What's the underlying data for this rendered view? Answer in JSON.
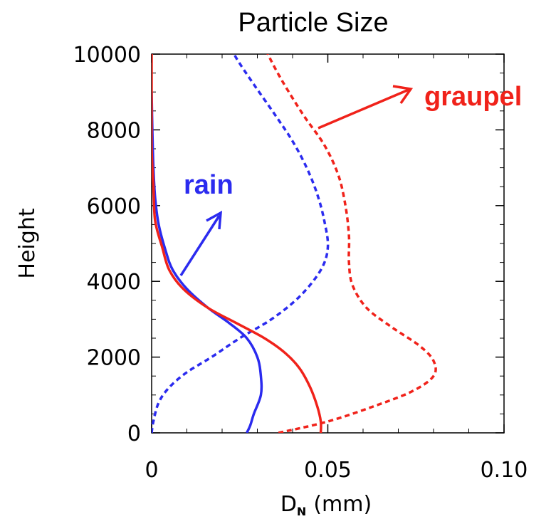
{
  "chart_data": {
    "type": "line",
    "title": "Particle Size",
    "xlabel": "D",
    "xlabel_sub": "N",
    "xlabel_unit": "(mm)",
    "ylabel": "Height",
    "xlim": [
      0,
      0.1
    ],
    "ylim": [
      0,
      10000
    ],
    "xticks": [
      "0",
      "0.05",
      "0.10"
    ],
    "xtick_values": [
      0,
      0.05,
      0.1
    ],
    "yticks": [
      "0",
      "2000",
      "4000",
      "6000",
      "8000",
      "10000"
    ],
    "ytick_values": [
      0,
      2000,
      4000,
      6000,
      8000,
      10000
    ],
    "colors": {
      "rain": "#2b2bef",
      "graupel": "#f0221a"
    },
    "series": [
      {
        "name": "rain",
        "color": "#2b2bef",
        "style": "solid",
        "points": [
          [
            0.027,
            0
          ],
          [
            0.028,
            200
          ],
          [
            0.029,
            500
          ],
          [
            0.031,
            1000
          ],
          [
            0.031,
            1500
          ],
          [
            0.03,
            2000
          ],
          [
            0.027,
            2500
          ],
          [
            0.022,
            2900
          ],
          [
            0.016,
            3300
          ],
          [
            0.01,
            3800
          ],
          [
            0.006,
            4300
          ],
          [
            0.004,
            4800
          ],
          [
            0.002,
            5500
          ],
          [
            0.001,
            6200
          ],
          [
            0.0005,
            7000
          ],
          [
            0.0002,
            8000
          ],
          [
            0,
            9000
          ]
        ]
      },
      {
        "name": "rain",
        "color": "#2b2bef",
        "style": "dashed",
        "points": [
          [
            0,
            0
          ],
          [
            0.0005,
            300
          ],
          [
            0.002,
            800
          ],
          [
            0.005,
            1200
          ],
          [
            0.01,
            1600
          ],
          [
            0.017,
            2000
          ],
          [
            0.025,
            2500
          ],
          [
            0.034,
            3000
          ],
          [
            0.042,
            3600
          ],
          [
            0.048,
            4300
          ],
          [
            0.05,
            4900
          ],
          [
            0.049,
            5600
          ],
          [
            0.047,
            6300
          ],
          [
            0.044,
            7000
          ],
          [
            0.04,
            7700
          ],
          [
            0.035,
            8400
          ],
          [
            0.029,
            9200
          ],
          [
            0.024,
            9900
          ],
          [
            0.022,
            10300
          ]
        ]
      },
      {
        "name": "graupel",
        "color": "#f0221a",
        "style": "solid",
        "points": [
          [
            0.048,
            0
          ],
          [
            0.048,
            300
          ],
          [
            0.047,
            700
          ],
          [
            0.045,
            1200
          ],
          [
            0.042,
            1700
          ],
          [
            0.038,
            2100
          ],
          [
            0.032,
            2500
          ],
          [
            0.024,
            2900
          ],
          [
            0.016,
            3300
          ],
          [
            0.009,
            3800
          ],
          [
            0.005,
            4300
          ],
          [
            0.003,
            4900
          ],
          [
            0.001,
            5600
          ],
          [
            0.0005,
            6500
          ],
          [
            0,
            7500
          ],
          [
            0,
            8500
          ],
          [
            0,
            10300
          ]
        ]
      },
      {
        "name": "graupel",
        "color": "#f0221a",
        "style": "dashed",
        "points": [
          [
            0.036,
            0
          ],
          [
            0.05,
            300
          ],
          [
            0.063,
            700
          ],
          [
            0.074,
            1100
          ],
          [
            0.08,
            1500
          ],
          [
            0.08,
            1900
          ],
          [
            0.076,
            2300
          ],
          [
            0.068,
            2800
          ],
          [
            0.061,
            3300
          ],
          [
            0.057,
            3900
          ],
          [
            0.056,
            4500
          ],
          [
            0.056,
            5200
          ],
          [
            0.055,
            6000
          ],
          [
            0.053,
            6800
          ],
          [
            0.049,
            7600
          ],
          [
            0.043,
            8400
          ],
          [
            0.037,
            9300
          ],
          [
            0.033,
            10000
          ],
          [
            0.032,
            10300
          ]
        ]
      }
    ],
    "annotations": [
      {
        "text": "rain",
        "color": "#2b2bef"
      },
      {
        "text": "graupel",
        "color": "#f0221a"
      }
    ]
  }
}
